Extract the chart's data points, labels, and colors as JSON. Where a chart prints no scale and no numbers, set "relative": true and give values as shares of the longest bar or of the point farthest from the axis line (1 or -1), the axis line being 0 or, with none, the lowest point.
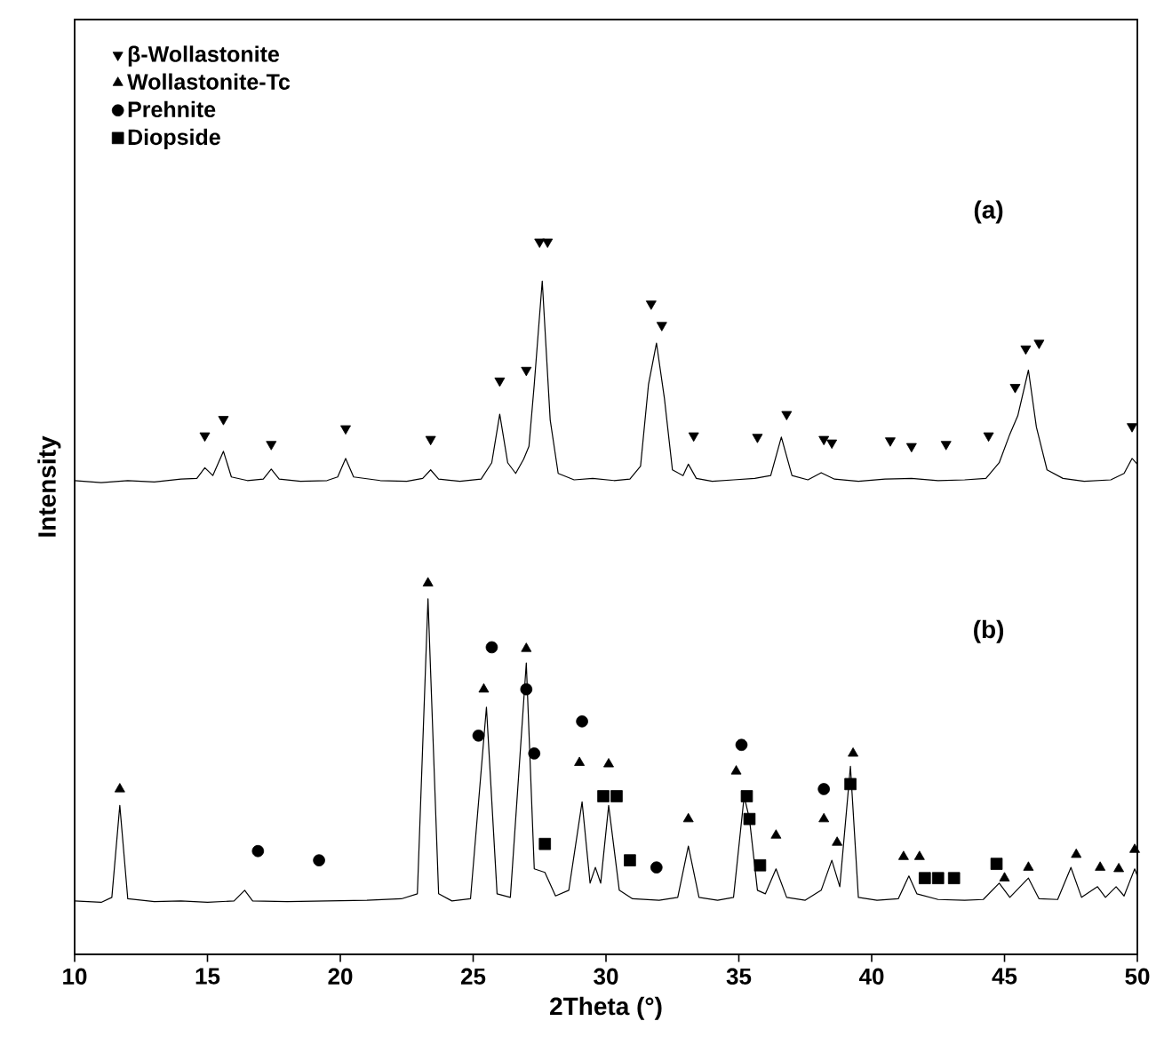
{
  "chart_data": {
    "type": "line",
    "relative": true,
    "xlabel": "2Theta (°)",
    "ylabel": "Intensity",
    "xlim": [
      10,
      50
    ],
    "xticks": [
      10,
      15,
      20,
      25,
      30,
      35,
      40,
      45,
      50
    ],
    "legend": "top left",
    "grid": false,
    "annotations": [
      "(a)",
      "(b)"
    ],
    "series": [
      {
        "color": "#000000",
        "marker": "none",
        "x": [
          10,
          11,
          12,
          13,
          14,
          14.6,
          14.9,
          15.2,
          15.6,
          15.9,
          16.5,
          17.1,
          17.4,
          17.7,
          18.5,
          19.5,
          19.9,
          20.2,
          20.5,
          21.5,
          22.5,
          23.1,
          23.4,
          23.7,
          24.5,
          25.3,
          25.7,
          26.0,
          26.3,
          26.6,
          26.9,
          27.1,
          27.3,
          27.6,
          27.9,
          28.2,
          28.8,
          29.5,
          30.3,
          30.9,
          31.3,
          31.6,
          31.9,
          32.2,
          32.5,
          32.9,
          33.1,
          33.4,
          34.0,
          34.8,
          35.6,
          36.2,
          36.6,
          37.0,
          37.6,
          38.1,
          38.6,
          39.5,
          40.5,
          41.5,
          42.5,
          43.5,
          44.3,
          44.8,
          45.2,
          45.5,
          45.9,
          46.2,
          46.6,
          47.2,
          48.0,
          49.0,
          49.5,
          49.8,
          50
        ],
        "values": [
          0.665,
          0.662,
          0.665,
          0.663,
          0.667,
          0.668,
          0.683,
          0.672,
          0.706,
          0.67,
          0.665,
          0.667,
          0.681,
          0.667,
          0.664,
          0.665,
          0.67,
          0.696,
          0.67,
          0.665,
          0.664,
          0.668,
          0.68,
          0.667,
          0.664,
          0.667,
          0.69,
          0.758,
          0.69,
          0.675,
          0.695,
          0.713,
          0.8,
          0.945,
          0.75,
          0.675,
          0.666,
          0.668,
          0.665,
          0.667,
          0.685,
          0.8,
          0.858,
          0.78,
          0.68,
          0.672,
          0.688,
          0.668,
          0.664,
          0.666,
          0.668,
          0.672,
          0.726,
          0.672,
          0.666,
          0.676,
          0.667,
          0.664,
          0.667,
          0.668,
          0.665,
          0.666,
          0.668,
          0.69,
          0.73,
          0.756,
          0.82,
          0.74,
          0.68,
          0.668,
          0.664,
          0.666,
          0.675,
          0.696,
          0.688
        ]
      },
      {
        "color": "#000000",
        "marker": "none",
        "x": [
          10,
          11.0,
          11.4,
          11.7,
          12.0,
          13,
          14,
          15,
          16.0,
          16.4,
          16.7,
          18,
          19.5,
          21,
          22.3,
          22.9,
          23.3,
          23.7,
          24.2,
          24.9,
          25.5,
          25.9,
          26.4,
          27.0,
          27.3,
          27.7,
          28.1,
          28.6,
          29.1,
          29.4,
          29.6,
          29.8,
          30.1,
          30.5,
          31.0,
          32.0,
          32.7,
          33.1,
          33.5,
          34.2,
          34.8,
          35.2,
          35.4,
          35.7,
          36.0,
          36.4,
          36.8,
          37.5,
          38.1,
          38.5,
          38.8,
          39.2,
          39.5,
          40.2,
          41.0,
          41.4,
          41.7,
          42.5,
          43.5,
          44.2,
          44.8,
          45.2,
          45.9,
          46.3,
          47.0,
          47.5,
          47.9,
          48.5,
          48.8,
          49.2,
          49.5,
          49.9,
          50
        ],
        "values": [
          0.075,
          0.073,
          0.08,
          0.209,
          0.078,
          0.074,
          0.075,
          0.073,
          0.075,
          0.09,
          0.075,
          0.074,
          0.075,
          0.076,
          0.078,
          0.085,
          0.499,
          0.085,
          0.075,
          0.078,
          0.347,
          0.085,
          0.08,
          0.409,
          0.12,
          0.115,
          0.082,
          0.09,
          0.214,
          0.1,
          0.122,
          0.1,
          0.209,
          0.09,
          0.078,
          0.076,
          0.08,
          0.152,
          0.08,
          0.076,
          0.08,
          0.222,
          0.19,
          0.09,
          0.085,
          0.12,
          0.08,
          0.076,
          0.09,
          0.132,
          0.095,
          0.264,
          0.08,
          0.076,
          0.078,
          0.11,
          0.085,
          0.077,
          0.076,
          0.077,
          0.1,
          0.08,
          0.107,
          0.078,
          0.077,
          0.122,
          0.08,
          0.095,
          0.08,
          0.095,
          0.082,
          0.12,
          0.11
        ]
      },
      {
        "type": "scatter",
        "name": "β-Wollastonite",
        "color": "#000000",
        "marker": "triangle-down",
        "x": [
          14.9,
          15.6,
          17.4,
          20.2,
          23.4,
          26.0,
          27.0,
          27.5,
          27.8,
          31.7,
          32.1,
          33.3,
          35.7,
          36.8,
          38.2,
          38.5,
          40.7,
          41.5,
          42.8,
          44.4,
          45.4,
          45.8,
          46.3,
          49.8
        ],
        "values": [
          0.728,
          0.751,
          0.716,
          0.738,
          0.723,
          0.805,
          0.82,
          1.0,
          1.0,
          0.913,
          0.883,
          0.728,
          0.726,
          0.758,
          0.723,
          0.718,
          0.721,
          0.713,
          0.716,
          0.728,
          0.796,
          0.85,
          0.858,
          0.741
        ]
      },
      {
        "type": "scatter",
        "name": "Wollastonite-Tc",
        "color": "#000000",
        "marker": "triangle",
        "x": [
          11.7,
          23.3,
          25.4,
          27.0,
          29.0,
          30.1,
          33.1,
          34.9,
          36.4,
          38.2,
          38.7,
          39.3,
          41.2,
          41.8,
          45.0,
          45.9,
          47.7,
          48.6,
          49.3,
          49.9
        ],
        "values": [
          0.232,
          0.521,
          0.372,
          0.429,
          0.269,
          0.267,
          0.19,
          0.257,
          0.167,
          0.19,
          0.157,
          0.282,
          0.137,
          0.137,
          0.107,
          0.122,
          0.14,
          0.122,
          0.12,
          0.147
        ]
      },
      {
        "type": "scatter",
        "name": "Prehnite",
        "color": "#000000",
        "marker": "circle",
        "x": [
          16.9,
          19.2,
          25.2,
          25.7,
          27.0,
          27.3,
          29.1,
          31.9,
          35.1,
          38.2
        ],
        "values": [
          0.145,
          0.132,
          0.307,
          0.431,
          0.372,
          0.282,
          0.327,
          0.122,
          0.294,
          0.232
        ]
      },
      {
        "type": "scatter",
        "name": "Diopside",
        "color": "#000000",
        "marker": "square",
        "x": [
          27.7,
          29.9,
          30.4,
          30.9,
          35.3,
          35.4,
          35.8,
          39.2,
          42.0,
          42.5,
          43.1,
          44.7
        ],
        "values": [
          0.155,
          0.222,
          0.222,
          0.132,
          0.222,
          0.19,
          0.125,
          0.239,
          0.107,
          0.107,
          0.107,
          0.127
        ]
      }
    ]
  }
}
